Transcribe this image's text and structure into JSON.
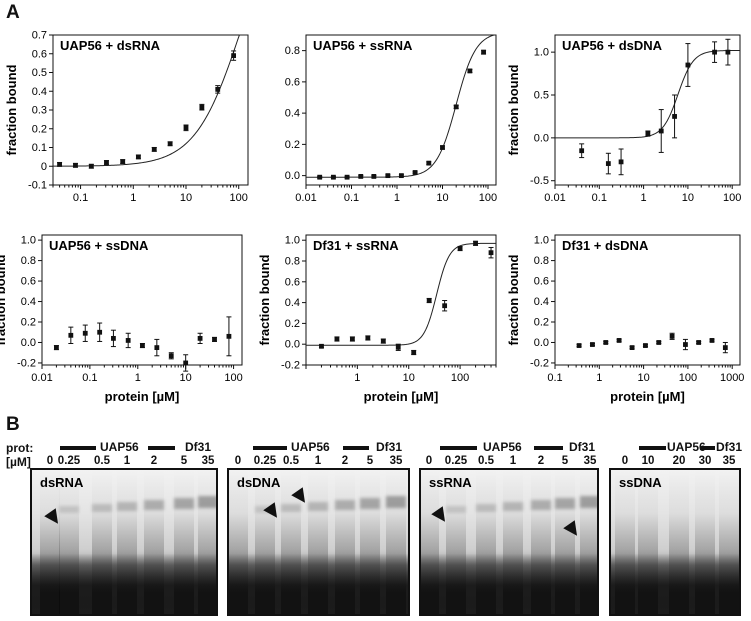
{
  "panels": {
    "a": "A",
    "b": "B"
  },
  "chart_data": [
    {
      "type": "scatter",
      "title": "UAP56 + dsRNA",
      "xlabel": "",
      "ylabel": "fraction bound",
      "xscale": "log",
      "xlim": [
        0.03,
        150
      ],
      "ylim": [
        -0.1,
        0.7
      ],
      "xticks": [
        0.1,
        1,
        10,
        100
      ],
      "xticklabels": [
        "0.1",
        "1",
        "10",
        "100"
      ],
      "yticks": [
        -0.1,
        0,
        0.1,
        0.2,
        0.3,
        0.4,
        0.5,
        0.6,
        0.7
      ],
      "yticklabels": [
        "-0.1",
        "0",
        "0.1",
        "0.2",
        "0.3",
        "0.4",
        "0.5",
        "0.6",
        "0.7"
      ],
      "x": [
        0.04,
        0.08,
        0.16,
        0.31,
        0.63,
        1.25,
        2.5,
        5,
        10,
        20,
        40,
        80
      ],
      "y": [
        0.01,
        0.005,
        0.0,
        0.02,
        0.025,
        0.05,
        0.09,
        0.12,
        0.205,
        0.315,
        0.41,
        0.59
      ],
      "err": [
        0.01,
        0.01,
        0.01,
        0.01,
        0.01,
        0.01,
        0.01,
        0.01,
        0.015,
        0.015,
        0.02,
        0.025
      ],
      "fit": {
        "bottom": 0,
        "top": 1.45,
        "kd": 110,
        "n": 1
      }
    },
    {
      "type": "scatter",
      "title": "UAP56 + ssRNA",
      "xlabel": "",
      "ylabel": "",
      "xscale": "log",
      "xlim": [
        0.01,
        150
      ],
      "ylim": [
        -0.06,
        0.9
      ],
      "xticks": [
        0.01,
        0.1,
        1,
        10,
        100
      ],
      "xticklabels": [
        "0.01",
        "0.1",
        "1",
        "10",
        "100"
      ],
      "yticks": [
        0,
        0.2,
        0.4,
        0.6,
        0.8
      ],
      "yticklabels": [
        "0.0",
        "0.2",
        "0.4",
        "0.6",
        "0.8"
      ],
      "x": [
        0.02,
        0.04,
        0.08,
        0.16,
        0.31,
        0.63,
        1.25,
        2.5,
        5,
        10,
        20,
        40,
        80
      ],
      "y": [
        -0.01,
        -0.01,
        -0.01,
        -0.005,
        -0.005,
        0.0,
        0.0,
        0.02,
        0.08,
        0.18,
        0.44,
        0.67,
        0.79
      ],
      "err": [
        0.005,
        0.005,
        0.005,
        0.005,
        0.005,
        0.005,
        0.005,
        0.005,
        0.008,
        0.01,
        0.01,
        0.01,
        0.012
      ],
      "fit": {
        "bottom": -0.01,
        "top": 0.92,
        "kd": 20,
        "n": 2.0
      }
    },
    {
      "type": "scatter",
      "title": "UAP56 + dsDNA",
      "xlabel": "",
      "ylabel": "fraction bound",
      "xscale": "log",
      "xlim": [
        0.01,
        150
      ],
      "ylim": [
        -0.55,
        1.2
      ],
      "xticks": [
        0.01,
        0.1,
        1,
        10,
        100
      ],
      "xticklabels": [
        "0.01",
        "0.1",
        "1",
        "10",
        "100"
      ],
      "yticks": [
        -0.5,
        0,
        0.5,
        1.0
      ],
      "yticklabels": [
        "-0.5",
        "0.0",
        "0.5",
        "1.0"
      ],
      "x": [
        0.04,
        0.16,
        0.31,
        1.25,
        2.5,
        5,
        10,
        40,
        80
      ],
      "y": [
        -0.15,
        -0.3,
        -0.28,
        0.05,
        0.08,
        0.25,
        0.85,
        1.0,
        1.0
      ],
      "err": [
        0.08,
        0.12,
        0.15,
        0.03,
        0.25,
        0.25,
        0.25,
        0.12,
        0.15
      ],
      "fit": {
        "bottom": 0,
        "top": 1.02,
        "kd": 6,
        "n": 2.5
      }
    },
    {
      "type": "scatter",
      "title": "UAP56 + ssDNA",
      "xlabel": "protein [µM]",
      "ylabel": "fraction bound",
      "xscale": "log",
      "xlim": [
        0.01,
        150
      ],
      "ylim": [
        -0.22,
        1.05
      ],
      "xticks": [
        0.01,
        0.1,
        1,
        10,
        100
      ],
      "xticklabels": [
        "0.01",
        "0.1",
        "1",
        "10",
        "100"
      ],
      "yticks": [
        -0.2,
        0,
        0.2,
        0.4,
        0.6,
        0.8,
        1.0
      ],
      "yticklabels": [
        "-0.2",
        "0.0",
        "0.2",
        "0.4",
        "0.6",
        "0.8",
        "1.0"
      ],
      "x": [
        0.02,
        0.04,
        0.08,
        0.16,
        0.31,
        0.63,
        1.25,
        2.5,
        5,
        10,
        20,
        40,
        80
      ],
      "y": [
        -0.05,
        0.07,
        0.09,
        0.1,
        0.04,
        0.02,
        -0.03,
        -0.05,
        -0.13,
        -0.2,
        0.04,
        0.03,
        0.06
      ],
      "err": [
        0.02,
        0.08,
        0.08,
        0.09,
        0.08,
        0.07,
        0.02,
        0.08,
        0.03,
        0.08,
        0.05,
        0.02,
        0.19
      ]
    },
    {
      "type": "scatter",
      "title": "Df31 + ssRNA",
      "xlabel": "protein [µM]",
      "ylabel": "fraction bound",
      "xscale": "log",
      "xlim": [
        0.1,
        500
      ],
      "ylim": [
        -0.2,
        1.05
      ],
      "xticks": [
        1,
        10,
        100
      ],
      "xticklabels": [
        "1",
        "10",
        "100"
      ],
      "yticks": [
        -0.2,
        0,
        0.2,
        0.4,
        0.6,
        0.8,
        1.0
      ],
      "yticklabels": [
        "-0.2",
        "0.0",
        "0.2",
        "0.4",
        "0.6",
        "0.8",
        "1.0"
      ],
      "x": [
        0.2,
        0.4,
        0.8,
        1.6,
        3.2,
        6.25,
        12.5,
        25,
        50,
        100,
        200,
        400
      ],
      "y": [
        -0.02,
        0.05,
        0.05,
        0.06,
        0.03,
        -0.03,
        -0.08,
        0.42,
        0.37,
        0.92,
        0.97,
        0.88
      ],
      "err": [
        0.01,
        0.02,
        0.02,
        0.02,
        0.02,
        0.03,
        0.02,
        0.02,
        0.05,
        0.02,
        0.02,
        0.05
      ],
      "fit": {
        "bottom": -0.01,
        "top": 0.97,
        "kd": 35,
        "n": 3.5
      }
    },
    {
      "type": "scatter",
      "title": "Df31 + dsDNA",
      "xlabel": "protein [µM]",
      "ylabel": "fraction bound",
      "xscale": "log",
      "xlim": [
        0.1,
        1500
      ],
      "ylim": [
        -0.22,
        1.05
      ],
      "xticks": [
        0.1,
        1,
        10,
        100,
        1000
      ],
      "xticklabels": [
        "0.1",
        "1",
        "10",
        "100",
        "1000"
      ],
      "yticks": [
        -0.2,
        0,
        0.2,
        0.4,
        0.6,
        0.8,
        1.0
      ],
      "yticklabels": [
        "-0.2",
        "0.0",
        "0.2",
        "0.4",
        "0.6",
        "0.8",
        "1.0"
      ],
      "x": [
        0.35,
        0.7,
        1.4,
        2.8,
        5.5,
        11,
        22,
        44,
        88,
        175,
        350,
        700
      ],
      "y": [
        -0.03,
        -0.02,
        0.0,
        0.02,
        -0.05,
        -0.03,
        0.0,
        0.06,
        -0.02,
        0.0,
        0.02,
        -0.05
      ],
      "err": [
        0.01,
        0.01,
        0.01,
        0.01,
        0.01,
        0.01,
        0.01,
        0.03,
        0.05,
        0.01,
        0.01,
        0.05
      ]
    }
  ],
  "gels": {
    "prot_label": "prot:",
    "unit_label": "[µM]",
    "panels": [
      {
        "label": "dsRNA",
        "uap": "UAP56",
        "df": "Df31",
        "lanes": [
          "0",
          "0.25",
          "0.5",
          "1",
          "2",
          "5",
          "35"
        ]
      },
      {
        "label": "dsDNA",
        "uap": "UAP56",
        "df": "Df31",
        "lanes": [
          "0",
          "0.25",
          "0.5",
          "1",
          "2",
          "5",
          "35"
        ]
      },
      {
        "label": "ssRNA",
        "uap": "UAP56",
        "df": "Df31",
        "lanes": [
          "0",
          "0.25",
          "0.5",
          "1",
          "2",
          "5",
          "35"
        ]
      },
      {
        "label": "ssDNA",
        "uap": "UAP56",
        "df": "Df31",
        "lanes": [
          "0",
          "10",
          "20",
          "30",
          "35"
        ]
      }
    ]
  }
}
